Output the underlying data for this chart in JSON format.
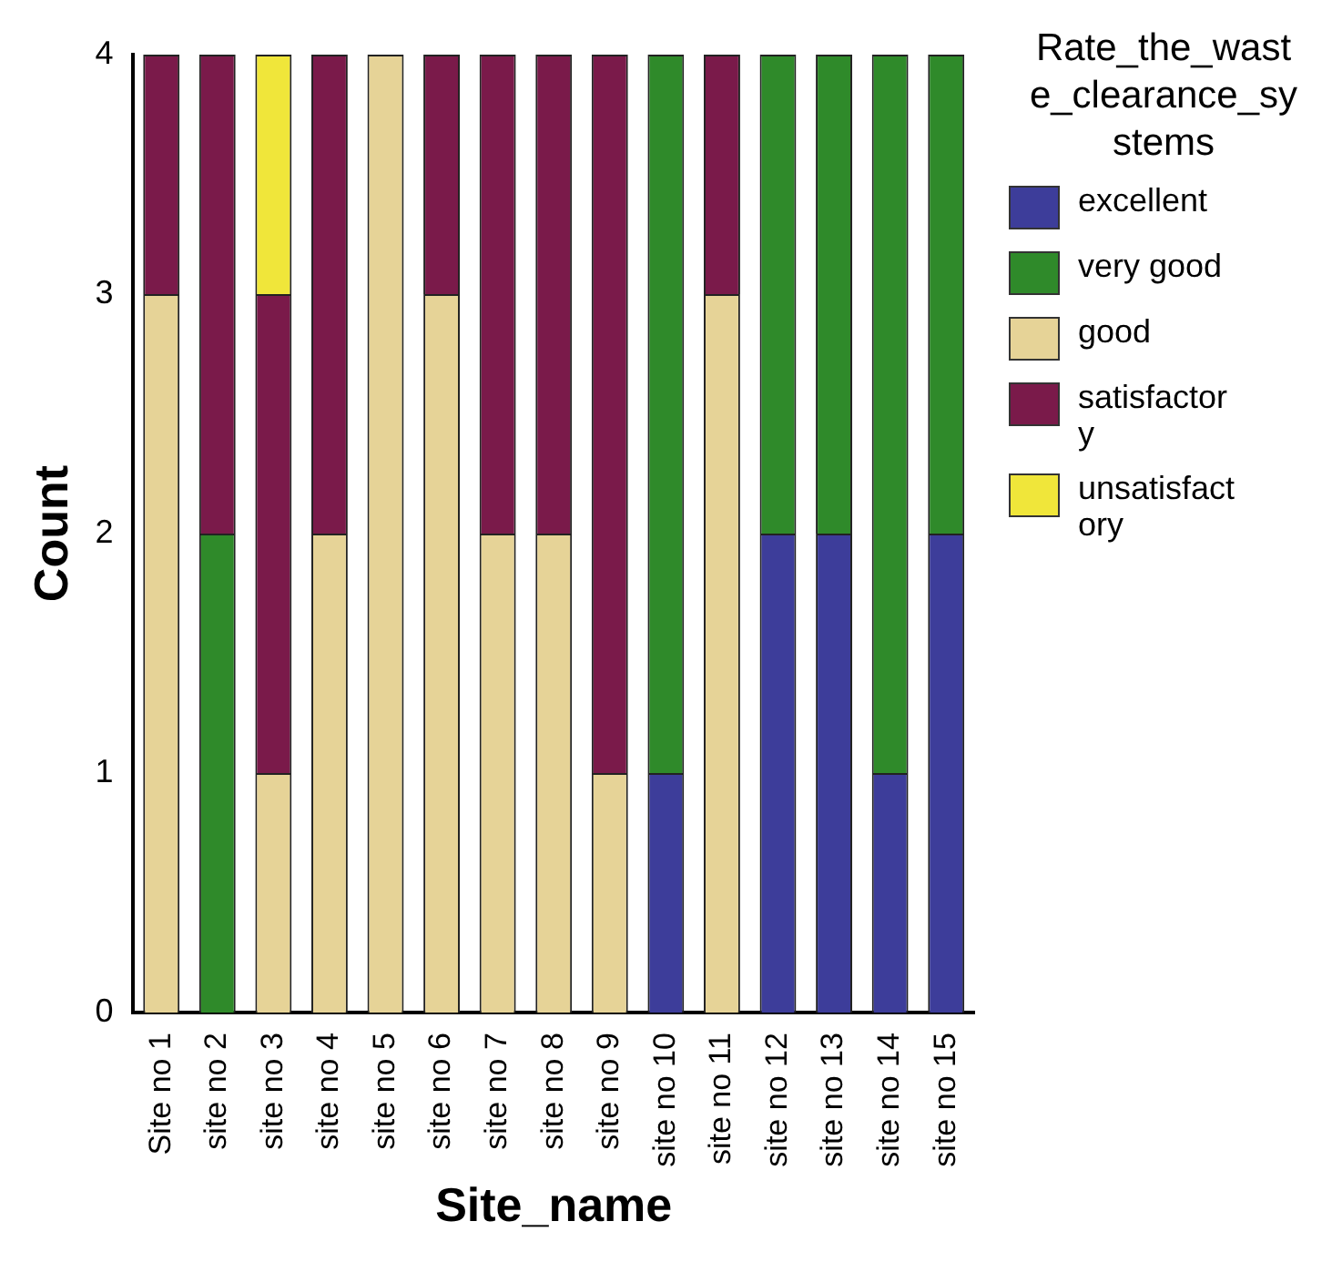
{
  "chart_data": {
    "type": "bar",
    "stacked": true,
    "xlabel": "Site_name",
    "ylabel": "Count",
    "legend_title": "Rate_the_waste_clearance_systems",
    "legend": "right",
    "grid": false,
    "categories": [
      "Site no 1",
      "site no 2",
      "site no 3",
      "site no 4",
      "site no 5",
      "site no 6",
      "site no 7",
      "site no 8",
      "site no 9",
      "site no 10",
      "site no 11",
      "site no 12",
      "site no 13",
      "site no 14",
      "site no 15"
    ],
    "ylim": [
      0,
      4
    ],
    "yticks": [
      0,
      1,
      2,
      3,
      4
    ],
    "series": [
      {
        "name": "excellent",
        "color": "#3d3d9a",
        "values": [
          null,
          null,
          null,
          null,
          null,
          null,
          null,
          null,
          null,
          1,
          null,
          2,
          2,
          1,
          2
        ]
      },
      {
        "name": "very good",
        "color": "#2f8a2a",
        "values": [
          null,
          2,
          null,
          null,
          null,
          null,
          null,
          null,
          null,
          3,
          null,
          2,
          2,
          3,
          2
        ]
      },
      {
        "name": "good",
        "color": "#e6d397",
        "values": [
          3,
          null,
          1,
          2,
          4,
          3,
          2,
          2,
          1,
          null,
          3,
          null,
          null,
          null,
          null
        ]
      },
      {
        "name": "satisfactory",
        "color": "#7a1a4a",
        "values": [
          1,
          2,
          2,
          2,
          null,
          1,
          2,
          2,
          3,
          null,
          1,
          null,
          null,
          null,
          null
        ]
      },
      {
        "name": "unsatisfactory",
        "color": "#f0e63a",
        "values": [
          null,
          null,
          1,
          null,
          null,
          null,
          null,
          null,
          null,
          null,
          null,
          null,
          null,
          null,
          null
        ]
      }
    ]
  }
}
